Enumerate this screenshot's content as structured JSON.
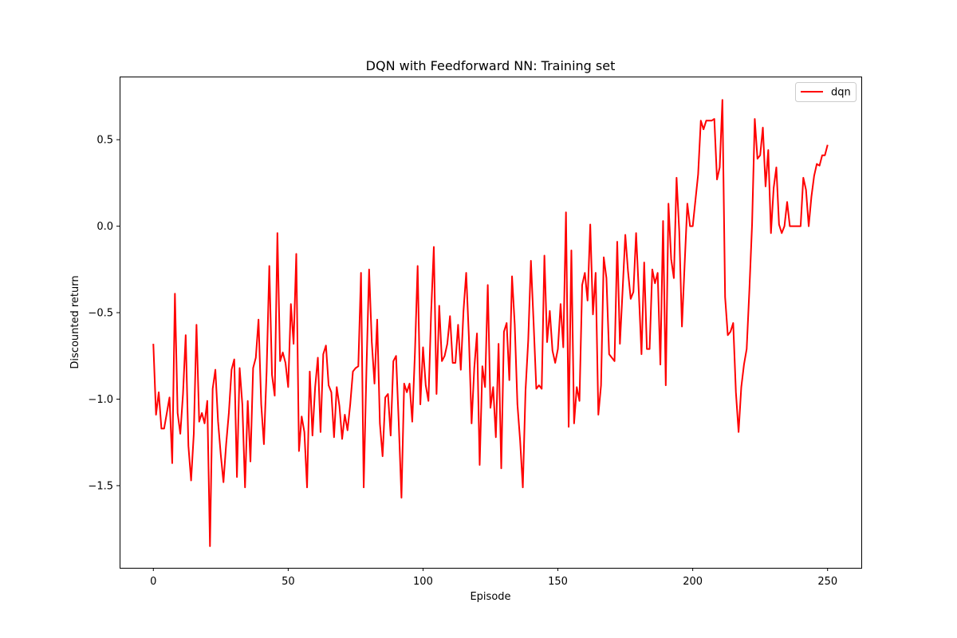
{
  "chart_data": {
    "type": "line",
    "title": "DQN with Feedforward NN: Training set",
    "xlabel": "Episode",
    "ylabel": "Discounted return",
    "xlim": [
      -12.5,
      262.5
    ],
    "ylim": [
      -1.975,
      0.865
    ],
    "xticks": [
      0,
      50,
      100,
      150,
      200,
      250
    ],
    "yticks": [
      -1.5,
      -1.0,
      -0.5,
      0.0,
      0.5
    ],
    "xtick_labels": [
      "0",
      "50",
      "100",
      "150",
      "200",
      "250"
    ],
    "ytick_labels": [
      "−1.5",
      "−1.0",
      "−0.5",
      "0.0",
      "0.5"
    ],
    "grid": false,
    "legend_position": "top-right",
    "series": [
      {
        "name": "dqn",
        "color": "#ff0000",
        "x": [
          0,
          1,
          2,
          3,
          4,
          5,
          6,
          7,
          8,
          9,
          10,
          11,
          12,
          13,
          14,
          15,
          16,
          17,
          18,
          19,
          20,
          21,
          22,
          23,
          24,
          25,
          26,
          27,
          28,
          29,
          30,
          31,
          32,
          33,
          34,
          35,
          36,
          37,
          38,
          39,
          40,
          41,
          42,
          43,
          44,
          45,
          46,
          47,
          48,
          49,
          50,
          51,
          52,
          53,
          54,
          55,
          56,
          57,
          58,
          59,
          60,
          61,
          62,
          63,
          64,
          65,
          66,
          67,
          68,
          69,
          70,
          71,
          72,
          73,
          74,
          75,
          76,
          77,
          78,
          79,
          80,
          81,
          82,
          83,
          84,
          85,
          86,
          87,
          88,
          89,
          90,
          91,
          92,
          93,
          94,
          95,
          96,
          97,
          98,
          99,
          100,
          101,
          102,
          103,
          104,
          105,
          106,
          107,
          108,
          109,
          110,
          111,
          112,
          113,
          114,
          115,
          116,
          117,
          118,
          119,
          120,
          121,
          122,
          123,
          124,
          125,
          126,
          127,
          128,
          129,
          130,
          131,
          132,
          133,
          134,
          135,
          136,
          137,
          138,
          139,
          140,
          141,
          142,
          143,
          144,
          145,
          146,
          147,
          148,
          149,
          150,
          151,
          152,
          153,
          154,
          155,
          156,
          157,
          158,
          159,
          160,
          161,
          162,
          163,
          164,
          165,
          166,
          167,
          168,
          169,
          170,
          171,
          172,
          173,
          174,
          175,
          176,
          177,
          178,
          179,
          180,
          181,
          182,
          183,
          184,
          185,
          186,
          187,
          188,
          189,
          190,
          191,
          192,
          193,
          194,
          195,
          196,
          197,
          198,
          199,
          200,
          201,
          202,
          203,
          204,
          205,
          206,
          207,
          208,
          209,
          210,
          211,
          212,
          213,
          214,
          215,
          216,
          217,
          218,
          219,
          220,
          221,
          222,
          223,
          224,
          225,
          226,
          227,
          228,
          229,
          230,
          231,
          232,
          233,
          234,
          235,
          236,
          237,
          238,
          239,
          240,
          241,
          242,
          243,
          244,
          245,
          246,
          247,
          248,
          249,
          250
        ],
        "y": [
          -0.68,
          -1.09,
          -0.96,
          -1.17,
          -1.17,
          -1.08,
          -0.99,
          -1.37,
          -0.39,
          -1.08,
          -1.2,
          -0.97,
          -0.63,
          -1.27,
          -1.47,
          -1.2,
          -0.57,
          -1.13,
          -1.08,
          -1.14,
          -1.01,
          -1.85,
          -0.94,
          -0.83,
          -1.13,
          -1.32,
          -1.48,
          -1.26,
          -1.08,
          -0.83,
          -0.77,
          -1.45,
          -0.82,
          -1.03,
          -1.51,
          -1.01,
          -1.36,
          -0.82,
          -0.76,
          -0.54,
          -1.03,
          -1.26,
          -0.84,
          -0.23,
          -0.86,
          -0.98,
          -0.04,
          -0.78,
          -0.73,
          -0.79,
          -0.93,
          -0.45,
          -0.68,
          -0.16,
          -1.3,
          -1.1,
          -1.19,
          -1.51,
          -0.84,
          -1.21,
          -0.93,
          -0.76,
          -1.19,
          -0.74,
          -0.69,
          -0.92,
          -0.96,
          -1.22,
          -0.93,
          -1.04,
          -1.23,
          -1.09,
          -1.18,
          -1.03,
          -0.84,
          -0.82,
          -0.81,
          -0.27,
          -1.51,
          -0.84,
          -0.25,
          -0.67,
          -0.91,
          -0.54,
          -1.14,
          -1.33,
          -0.99,
          -0.97,
          -1.21,
          -0.78,
          -0.75,
          -1.14,
          -1.57,
          -0.91,
          -0.96,
          -0.91,
          -1.13,
          -0.73,
          -0.23,
          -1.03,
          -0.7,
          -0.92,
          -1.01,
          -0.5,
          -0.12,
          -0.97,
          -0.46,
          -0.78,
          -0.75,
          -0.68,
          -0.52,
          -0.79,
          -0.79,
          -0.57,
          -0.83,
          -0.49,
          -0.27,
          -0.64,
          -1.14,
          -0.82,
          -0.62,
          -1.38,
          -0.81,
          -0.93,
          -0.34,
          -1.05,
          -0.93,
          -1.22,
          -0.68,
          -1.4,
          -0.61,
          -0.56,
          -0.89,
          -0.29,
          -0.57,
          -1.03,
          -1.24,
          -1.51,
          -0.95,
          -0.66,
          -0.2,
          -0.56,
          -0.94,
          -0.92,
          -0.94,
          -0.17,
          -0.67,
          -0.49,
          -0.72,
          -0.79,
          -0.71,
          -0.45,
          -0.7,
          0.08,
          -1.16,
          -0.14,
          -1.14,
          -0.93,
          -1.01,
          -0.34,
          -0.27,
          -0.43,
          0.01,
          -0.51,
          -0.27,
          -1.09,
          -0.92,
          -0.18,
          -0.3,
          -0.74,
          -0.76,
          -0.78,
          -0.09,
          -0.68,
          -0.37,
          -0.05,
          -0.26,
          -0.42,
          -0.38,
          -0.04,
          -0.38,
          -0.74,
          -0.21,
          -0.71,
          -0.71,
          -0.25,
          -0.33,
          -0.27,
          -0.8,
          0.03,
          -0.92,
          0.13,
          -0.19,
          -0.3,
          0.28,
          -0.03,
          -0.58,
          -0.22,
          0.13,
          0.0,
          0.0,
          0.15,
          0.3,
          0.61,
          0.56,
          0.61,
          0.61,
          0.61,
          0.62,
          0.27,
          0.34,
          0.73,
          -0.41,
          -0.63,
          -0.61,
          -0.56,
          -0.96,
          -1.19,
          -0.93,
          -0.8,
          -0.71,
          -0.37,
          0.01,
          0.62,
          0.39,
          0.41,
          0.57,
          0.23,
          0.44,
          -0.04,
          0.22,
          0.34,
          0.01,
          -0.04,
          0.0,
          0.14,
          0.0,
          0.0,
          0.0,
          0.0,
          0.0,
          0.28,
          0.21,
          0.0,
          0.17,
          0.29,
          0.36,
          0.35,
          0.41,
          0.41,
          0.47
        ]
      }
    ]
  }
}
